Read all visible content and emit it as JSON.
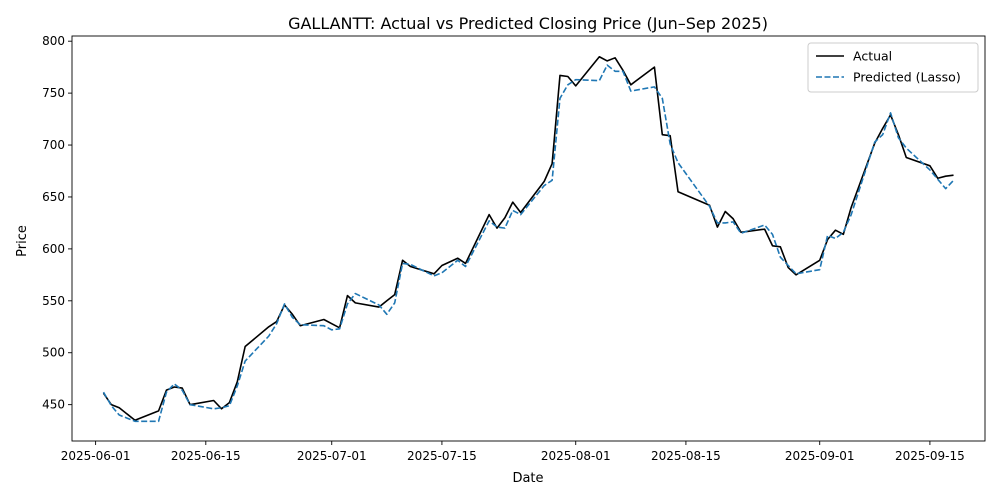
{
  "chart_data": {
    "type": "line",
    "title": "GALLANTT: Actual vs Predicted Closing Price (Jun–Sep 2025)",
    "xlabel": "Date",
    "ylabel": "Price",
    "xlim": [
      "2025-05-29",
      "2025-09-22"
    ],
    "ylim": [
      415,
      805
    ],
    "x_ticks": [
      "2025-06-01",
      "2025-06-15",
      "2025-07-01",
      "2025-07-15",
      "2025-08-01",
      "2025-08-15",
      "2025-09-01",
      "2025-09-15"
    ],
    "y_ticks": [
      450,
      500,
      550,
      600,
      650,
      700,
      750,
      800
    ],
    "grid": false,
    "legend_position": "top-right",
    "series": [
      {
        "name": "Actual",
        "color": "#000000",
        "style": "solid",
        "points": [
          [
            "2025-06-02",
            461
          ],
          [
            "2025-06-03",
            450
          ],
          [
            "2025-06-04",
            447
          ],
          [
            "2025-06-06",
            435
          ],
          [
            "2025-06-09",
            444
          ],
          [
            "2025-06-10",
            464
          ],
          [
            "2025-06-11",
            467
          ],
          [
            "2025-06-12",
            466
          ],
          [
            "2025-06-13",
            450
          ],
          [
            "2025-06-16",
            454
          ],
          [
            "2025-06-17",
            446
          ],
          [
            "2025-06-18",
            452
          ],
          [
            "2025-06-19",
            472
          ],
          [
            "2025-06-20",
            506
          ],
          [
            "2025-06-23",
            525
          ],
          [
            "2025-06-24",
            530
          ],
          [
            "2025-06-25",
            546
          ],
          [
            "2025-06-26",
            537
          ],
          [
            "2025-06-27",
            526
          ],
          [
            "2025-06-30",
            532
          ],
          [
            "2025-07-01",
            528
          ],
          [
            "2025-07-02",
            524
          ],
          [
            "2025-07-03",
            555
          ],
          [
            "2025-07-04",
            548
          ],
          [
            "2025-07-07",
            544
          ],
          [
            "2025-07-08",
            550
          ],
          [
            "2025-07-09",
            556
          ],
          [
            "2025-07-10",
            589
          ],
          [
            "2025-07-11",
            583
          ],
          [
            "2025-07-14",
            576
          ],
          [
            "2025-07-15",
            584
          ],
          [
            "2025-07-17",
            591
          ],
          [
            "2025-07-18",
            586
          ],
          [
            "2025-07-21",
            633
          ],
          [
            "2025-07-22",
            620
          ],
          [
            "2025-07-23",
            630
          ],
          [
            "2025-07-24",
            645
          ],
          [
            "2025-07-25",
            635
          ],
          [
            "2025-07-28",
            665
          ],
          [
            "2025-07-29",
            682
          ],
          [
            "2025-07-30",
            767
          ],
          [
            "2025-07-31",
            766
          ],
          [
            "2025-08-01",
            757
          ],
          [
            "2025-08-04",
            785
          ],
          [
            "2025-08-05",
            781
          ],
          [
            "2025-08-06",
            784
          ],
          [
            "2025-08-07",
            772
          ],
          [
            "2025-08-08",
            758
          ],
          [
            "2025-08-11",
            775
          ],
          [
            "2025-08-12",
            710
          ],
          [
            "2025-08-13",
            709
          ],
          [
            "2025-08-14",
            655
          ],
          [
            "2025-08-18",
            642
          ],
          [
            "2025-08-19",
            621
          ],
          [
            "2025-08-20",
            636
          ],
          [
            "2025-08-21",
            629
          ],
          [
            "2025-08-22",
            616
          ],
          [
            "2025-08-25",
            619
          ],
          [
            "2025-08-26",
            603
          ],
          [
            "2025-08-27",
            602
          ],
          [
            "2025-08-28",
            582
          ],
          [
            "2025-08-29",
            575
          ],
          [
            "2025-09-01",
            589
          ],
          [
            "2025-09-02",
            609
          ],
          [
            "2025-09-03",
            618
          ],
          [
            "2025-09-04",
            614
          ],
          [
            "2025-09-05",
            640
          ],
          [
            "2025-09-08",
            702
          ],
          [
            "2025-09-09",
            716
          ],
          [
            "2025-09-10",
            729
          ],
          [
            "2025-09-11",
            710
          ],
          [
            "2025-09-12",
            688
          ],
          [
            "2025-09-15",
            680
          ],
          [
            "2025-09-16",
            668
          ],
          [
            "2025-09-17",
            670
          ],
          [
            "2025-09-18",
            671
          ]
        ]
      },
      {
        "name": "Predicted (Lasso)",
        "color": "#1f77b4",
        "style": "dashed",
        "points": [
          [
            "2025-06-02",
            462
          ],
          [
            "2025-06-03",
            449
          ],
          [
            "2025-06-04",
            440
          ],
          [
            "2025-06-06",
            434
          ],
          [
            "2025-06-09",
            434
          ],
          [
            "2025-06-10",
            462
          ],
          [
            "2025-06-11",
            470
          ],
          [
            "2025-06-12",
            464
          ],
          [
            "2025-06-13",
            450
          ],
          [
            "2025-06-16",
            446
          ],
          [
            "2025-06-17",
            447
          ],
          [
            "2025-06-18",
            449
          ],
          [
            "2025-06-19",
            468
          ],
          [
            "2025-06-20",
            492
          ],
          [
            "2025-06-23",
            516
          ],
          [
            "2025-06-24",
            528
          ],
          [
            "2025-06-25",
            547
          ],
          [
            "2025-06-26",
            534
          ],
          [
            "2025-06-27",
            527
          ],
          [
            "2025-06-30",
            526
          ],
          [
            "2025-07-01",
            522
          ],
          [
            "2025-07-02",
            523
          ],
          [
            "2025-07-03",
            547
          ],
          [
            "2025-07-04",
            557
          ],
          [
            "2025-07-07",
            546
          ],
          [
            "2025-07-08",
            537
          ],
          [
            "2025-07-09",
            548
          ],
          [
            "2025-07-10",
            586
          ],
          [
            "2025-07-11",
            585
          ],
          [
            "2025-07-14",
            574
          ],
          [
            "2025-07-15",
            577
          ],
          [
            "2025-07-17",
            589
          ],
          [
            "2025-07-18",
            583
          ],
          [
            "2025-07-21",
            627
          ],
          [
            "2025-07-22",
            621
          ],
          [
            "2025-07-23",
            620
          ],
          [
            "2025-07-24",
            637
          ],
          [
            "2025-07-25",
            633
          ],
          [
            "2025-07-28",
            661
          ],
          [
            "2025-07-29",
            666
          ],
          [
            "2025-07-30",
            745
          ],
          [
            "2025-07-31",
            758
          ],
          [
            "2025-08-01",
            763
          ],
          [
            "2025-08-04",
            762
          ],
          [
            "2025-08-05",
            777
          ],
          [
            "2025-08-06",
            771
          ],
          [
            "2025-08-07",
            771
          ],
          [
            "2025-08-08",
            752
          ],
          [
            "2025-08-11",
            756
          ],
          [
            "2025-08-12",
            745
          ],
          [
            "2025-08-13",
            701
          ],
          [
            "2025-08-14",
            683
          ],
          [
            "2025-08-18",
            641
          ],
          [
            "2025-08-19",
            625
          ],
          [
            "2025-08-20",
            625
          ],
          [
            "2025-08-21",
            626
          ],
          [
            "2025-08-22",
            615
          ],
          [
            "2025-08-25",
            623
          ],
          [
            "2025-08-26",
            614
          ],
          [
            "2025-08-27",
            592
          ],
          [
            "2025-08-28",
            584
          ],
          [
            "2025-08-29",
            576
          ],
          [
            "2025-09-01",
            580
          ],
          [
            "2025-09-02",
            613
          ],
          [
            "2025-09-03",
            610
          ],
          [
            "2025-09-04",
            616
          ],
          [
            "2025-09-05",
            633
          ],
          [
            "2025-09-08",
            703
          ],
          [
            "2025-09-09",
            710
          ],
          [
            "2025-09-10",
            731
          ],
          [
            "2025-09-11",
            707
          ],
          [
            "2025-09-12",
            697
          ],
          [
            "2025-09-15",
            676
          ],
          [
            "2025-09-16",
            667
          ],
          [
            "2025-09-17",
            658
          ],
          [
            "2025-09-18",
            666
          ]
        ]
      }
    ]
  }
}
